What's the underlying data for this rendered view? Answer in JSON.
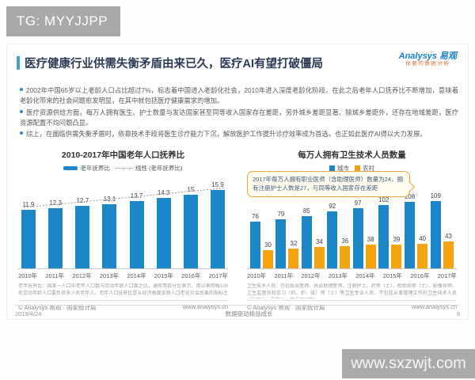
{
  "watermarks": {
    "tg_badge": "TG: MYYJJPP",
    "site_badge": "www.sxzwjt.com"
  },
  "slide": {
    "title": "医疗健康行业供需失衡矛盾由来已久，医疗AI有望打破僵局",
    "accent_color": "#3da0d0",
    "logo": {
      "brand": "Analysys 易观",
      "tagline": "你要的数据分析"
    },
    "bullets": [
      "2002年中国65岁以上老龄人口占比超过7%，标志着中国进入老龄化社会，2010年进入深度老龄化阶段。在此之后老年人口抚养比不断增加，意味着老龄化带来的社会问题愈发明显，在其中就包括医疗健康需求的增加。",
      "医疗资源供给方面，每万人拥有医生、护士数量与发达国家甚至同等收入国家存在差距，另外城乡差距显著。除城乡差距外，还存在地域差距，医疗资源配置不均问题凸显。",
      "综上，在面临供需失衡矛盾时，依靠技术手段将医生诊疗能力下沉，解放医护工作提升诊疗效率成为首选，也正如此医疗AI得以大力发展。"
    ],
    "footer": {
      "date": "2019/4/24",
      "center": "数据驱动精益成长",
      "page": "8"
    }
  },
  "chart_data": [
    {
      "type": "bar",
      "title": "2010-2017年中国老年人口抚养比",
      "categories": [
        "2010年",
        "2011年",
        "2012年",
        "2013年",
        "2014年",
        "2015年",
        "2016年",
        "2017年"
      ],
      "values": [
        11.9,
        12.3,
        12.7,
        13.1,
        13.7,
        14.3,
        15,
        15.9
      ],
      "legend": {
        "bar": "老年抚养比",
        "line": "线性 (老年抚养比)"
      },
      "trendline": true,
      "bar_color": "#1b87c9",
      "ylim": [
        0,
        17
      ],
      "grid": false,
      "footnote": "老年抚养比：指某一人口中老年人口数与劳动年龄人口数之比，通常用百分比表示，用以表明每100名劳动年龄人口要负担多少名老年人。老年人口抚养比是从经济角度反映人口老化社会后果的指标之一。",
      "source": "© Analysys 易观 · 国家统计局",
      "source_url": "www.analysys.cn"
    },
    {
      "type": "bar",
      "title": "每万人拥有卫生技术人员数量",
      "categories": [
        "2010年",
        "2011年",
        "2012年",
        "2013年",
        "2014年",
        "2015年",
        "2016年",
        "2017年"
      ],
      "series": [
        {
          "name": "城市",
          "color": "#1b87c9",
          "values": [
            76,
            79,
            85,
            92,
            97,
            102,
            108,
            109
          ]
        },
        {
          "name": "农村",
          "color": "#f5a30e",
          "values": [
            30,
            32,
            34,
            36,
            38,
            39,
            40,
            43
          ]
        }
      ],
      "annotation": "2017年每万人拥有职业医师（含助理医师）数量为24，拥有注册护士人数是27，与同等收入国家存在差距",
      "ylim": [
        0,
        120
      ],
      "grid": false,
      "footnote": "卫生技术人员：包括执业医师、执业助理医师、注册护士、药师（士）、检验技师（士）、影像技师、卫生监督员和见习（药、护、技）师（士）等卫生专业人员，不包括从事管理工作的卫生技术人员（如院长、副院长、党委书记等）",
      "source": "© Analysys 易观 · 国家统计局",
      "source_url": "www.analysys.cn"
    }
  ]
}
